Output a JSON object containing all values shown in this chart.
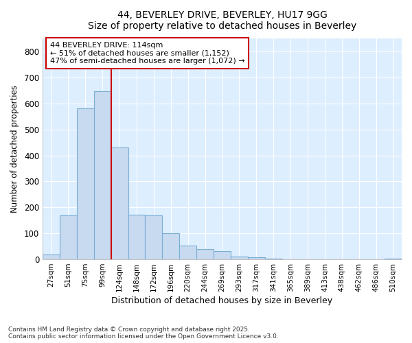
{
  "title_line1": "44, BEVERLEY DRIVE, BEVERLEY, HU17 9GG",
  "title_line2": "Size of property relative to detached houses in Beverley",
  "xlabel": "Distribution of detached houses by size in Beverley",
  "ylabel": "Number of detached properties",
  "categories": [
    "27sqm",
    "51sqm",
    "75sqm",
    "99sqm",
    "124sqm",
    "148sqm",
    "172sqm",
    "196sqm",
    "220sqm",
    "244sqm",
    "269sqm",
    "293sqm",
    "317sqm",
    "341sqm",
    "365sqm",
    "389sqm",
    "413sqm",
    "438sqm",
    "462sqm",
    "486sqm",
    "510sqm"
  ],
  "values": [
    18,
    168,
    580,
    648,
    430,
    172,
    170,
    100,
    52,
    40,
    32,
    12,
    8,
    2,
    1,
    1,
    0,
    0,
    0,
    0,
    2
  ],
  "bar_color": "#c8daf0",
  "bar_edge_color": "#7aadd4",
  "grid_color": "#c8daf0",
  "plot_bg_color": "#ddeeff",
  "figure_bg_color": "#ffffff",
  "vline_x": 3.5,
  "vline_color": "#cc0000",
  "annotation_title": "44 BEVERLEY DRIVE: 114sqm",
  "annotation_line1": "← 51% of detached houses are smaller (1,152)",
  "annotation_line2": "47% of semi-detached houses are larger (1,072) →",
  "annotation_box_color": "#cc0000",
  "ylim": [
    0,
    850
  ],
  "yticks": [
    0,
    100,
    200,
    300,
    400,
    500,
    600,
    700,
    800
  ],
  "footnote_line1": "Contains HM Land Registry data © Crown copyright and database right 2025.",
  "footnote_line2": "Contains public sector information licensed under the Open Government Licence v3.0."
}
